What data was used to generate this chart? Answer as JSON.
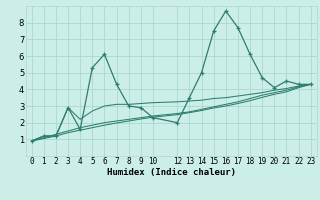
{
  "xlabel": "Humidex (Indice chaleur)",
  "bg_color": "#cceee8",
  "line_color": "#2e7d6e",
  "grid_color": "#aad8d0",
  "xlim": [
    -0.5,
    23.5
  ],
  "ylim": [
    0,
    9
  ],
  "xticks": [
    0,
    1,
    2,
    3,
    4,
    5,
    6,
    7,
    8,
    9,
    10,
    12,
    13,
    14,
    15,
    16,
    17,
    18,
    19,
    20,
    21,
    22,
    23
  ],
  "yticks": [
    1,
    2,
    3,
    4,
    5,
    6,
    7,
    8
  ],
  "series": [
    [
      0.9,
      1.2,
      1.2,
      2.9,
      1.6,
      5.3,
      6.1,
      4.3,
      3.0,
      2.9,
      2.3,
      2.0,
      3.5,
      5.0,
      7.5,
      8.7,
      7.7,
      6.1,
      4.7,
      4.1,
      4.5,
      4.3,
      4.3
    ],
    [
      0.9,
      1.2,
      1.2,
      2.9,
      2.2,
      2.7,
      3.0,
      3.1,
      3.1,
      3.15,
      3.2,
      3.25,
      3.3,
      3.35,
      3.45,
      3.5,
      3.6,
      3.7,
      3.8,
      3.95,
      4.05,
      4.2,
      4.3
    ],
    [
      0.9,
      1.1,
      1.3,
      1.5,
      1.7,
      1.85,
      2.0,
      2.1,
      2.2,
      2.3,
      2.4,
      2.55,
      2.65,
      2.8,
      2.95,
      3.1,
      3.25,
      3.45,
      3.65,
      3.8,
      3.95,
      4.15,
      4.3
    ],
    [
      0.9,
      1.05,
      1.2,
      1.4,
      1.55,
      1.7,
      1.85,
      1.98,
      2.1,
      2.22,
      2.33,
      2.48,
      2.6,
      2.73,
      2.88,
      3.0,
      3.15,
      3.32,
      3.52,
      3.7,
      3.85,
      4.1,
      4.3
    ]
  ],
  "x_positions": [
    0,
    1,
    2,
    3,
    4,
    5,
    6,
    7,
    8,
    9,
    10,
    12,
    13,
    14,
    15,
    16,
    17,
    18,
    19,
    20,
    21,
    22,
    23
  ],
  "tick_fontsize": 5.5,
  "label_fontsize": 6.5
}
